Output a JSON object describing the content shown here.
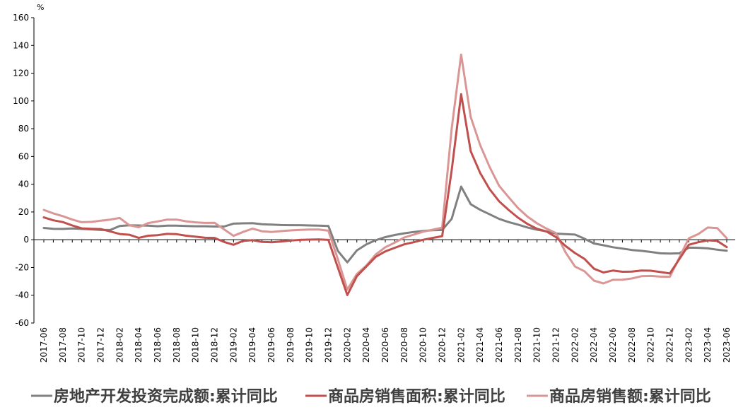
{
  "chart_data": {
    "type": "line",
    "y_unit": "%",
    "ylim": [
      -60,
      160
    ],
    "y_ticks": [
      160,
      140,
      120,
      100,
      80,
      60,
      40,
      20,
      0,
      -20,
      -40,
      -60
    ],
    "grid": false,
    "legend_position": "bottom",
    "x": [
      "2017-06",
      "2017-07",
      "2017-08",
      "2017-09",
      "2017-10",
      "2017-11",
      "2017-12",
      "2018-01",
      "2018-02",
      "2018-03",
      "2018-04",
      "2018-05",
      "2018-06",
      "2018-07",
      "2018-08",
      "2018-09",
      "2018-10",
      "2018-11",
      "2018-12",
      "2019-01",
      "2019-02",
      "2019-03",
      "2019-04",
      "2019-05",
      "2019-06",
      "2019-07",
      "2019-08",
      "2019-09",
      "2019-10",
      "2019-11",
      "2019-12",
      "2020-01",
      "2020-02",
      "2020-03",
      "2020-04",
      "2020-05",
      "2020-06",
      "2020-07",
      "2020-08",
      "2020-09",
      "2020-10",
      "2020-11",
      "2020-12",
      "2021-01",
      "2021-02",
      "2021-03",
      "2021-04",
      "2021-05",
      "2021-06",
      "2021-07",
      "2021-08",
      "2021-09",
      "2021-10",
      "2021-11",
      "2021-12",
      "2022-01",
      "2022-02",
      "2022-03",
      "2022-04",
      "2022-05",
      "2022-06",
      "2022-07",
      "2022-08",
      "2022-09",
      "2022-10",
      "2022-11",
      "2022-12",
      "2023-01",
      "2023-02",
      "2023-03",
      "2023-04",
      "2023-05",
      "2023-06"
    ],
    "x_tick_labels": [
      "2017-06",
      "2017-08",
      "2017-10",
      "2017-12",
      "2018-02",
      "2018-04",
      "2018-06",
      "2018-08",
      "2018-10",
      "2018-12",
      "2019-02",
      "2019-04",
      "2019-06",
      "2019-08",
      "2019-10",
      "2019-12",
      "2020-02",
      "2020-04",
      "2020-06",
      "2020-08",
      "2020-10",
      "2020-12",
      "2021-02",
      "2021-04",
      "2021-06",
      "2021-08",
      "2021-10",
      "2021-12",
      "2022-02",
      "2022-04",
      "2022-06",
      "2022-08",
      "2022-10",
      "2022-12",
      "2023-02",
      "2023-04",
      "2023-06"
    ],
    "series": [
      {
        "name": "房地产开发投资完成额:累计同比",
        "color": "#808080",
        "values": [
          8.5,
          7.9,
          7.8,
          8.1,
          7.8,
          7.5,
          7.0,
          7.0,
          9.9,
          10.4,
          10.3,
          10.2,
          9.7,
          10.2,
          10.1,
          9.9,
          9.7,
          9.7,
          9.5,
          9.5,
          11.6,
          11.8,
          11.9,
          11.2,
          10.9,
          10.6,
          10.5,
          10.5,
          10.3,
          10.2,
          9.9,
          -8.0,
          -16.3,
          -7.7,
          -3.3,
          -0.3,
          1.9,
          3.4,
          4.6,
          5.6,
          6.3,
          6.8,
          7.0,
          15.0,
          38.3,
          25.6,
          21.6,
          18.3,
          15.0,
          12.7,
          10.9,
          8.8,
          7.2,
          6.0,
          4.4,
          4.0,
          3.7,
          0.7,
          -2.7,
          -4.0,
          -5.4,
          -6.4,
          -7.4,
          -8.0,
          -8.8,
          -9.8,
          -10.0,
          -9.8,
          -5.7,
          -5.8,
          -6.2,
          -7.2,
          -7.9
        ]
      },
      {
        "name": "商品房销售面积:累计同比",
        "color": "#c0504d",
        "values": [
          16.1,
          14.0,
          12.7,
          10.3,
          8.2,
          7.9,
          7.7,
          6.0,
          4.1,
          3.6,
          1.3,
          2.9,
          3.3,
          4.2,
          4.0,
          2.9,
          2.2,
          1.4,
          1.3,
          -1.6,
          -3.6,
          -0.9,
          -0.3,
          -1.6,
          -1.8,
          -1.3,
          -0.6,
          -0.1,
          0.1,
          0.2,
          -0.1,
          -20.0,
          -39.9,
          -26.3,
          -19.3,
          -12.3,
          -8.4,
          -5.8,
          -3.3,
          -1.8,
          0.0,
          1.3,
          2.6,
          50.0,
          104.9,
          63.8,
          48.1,
          36.4,
          27.7,
          21.5,
          15.9,
          11.3,
          7.9,
          5.9,
          1.9,
          -4.5,
          -9.6,
          -13.8,
          -20.9,
          -23.6,
          -22.2,
          -23.1,
          -23.0,
          -22.2,
          -22.3,
          -23.3,
          -24.3,
          -14.0,
          -3.6,
          -1.8,
          -0.4,
          -0.9,
          -5.3
        ]
      },
      {
        "name": "商品房销售额:累计同比",
        "color": "#d99694",
        "values": [
          21.5,
          19.0,
          17.0,
          14.5,
          12.6,
          12.8,
          13.7,
          14.5,
          15.7,
          10.5,
          9.0,
          12.0,
          13.2,
          14.5,
          14.5,
          13.3,
          12.5,
          12.1,
          12.2,
          7.5,
          2.8,
          5.6,
          8.0,
          6.1,
          5.6,
          6.2,
          6.7,
          7.1,
          7.3,
          7.3,
          6.5,
          -14.0,
          -35.9,
          -24.7,
          -18.6,
          -10.6,
          -5.4,
          -2.1,
          1.6,
          3.7,
          5.8,
          7.2,
          8.7,
          80.0,
          133.4,
          88.5,
          68.2,
          52.4,
          38.9,
          30.7,
          22.8,
          16.6,
          11.8,
          8.0,
          4.8,
          -9.0,
          -19.3,
          -22.7,
          -29.5,
          -31.5,
          -28.9,
          -28.8,
          -27.9,
          -26.3,
          -26.1,
          -26.6,
          -26.7,
          -13.0,
          1.0,
          4.1,
          8.8,
          8.4,
          1.1
        ]
      }
    ]
  }
}
